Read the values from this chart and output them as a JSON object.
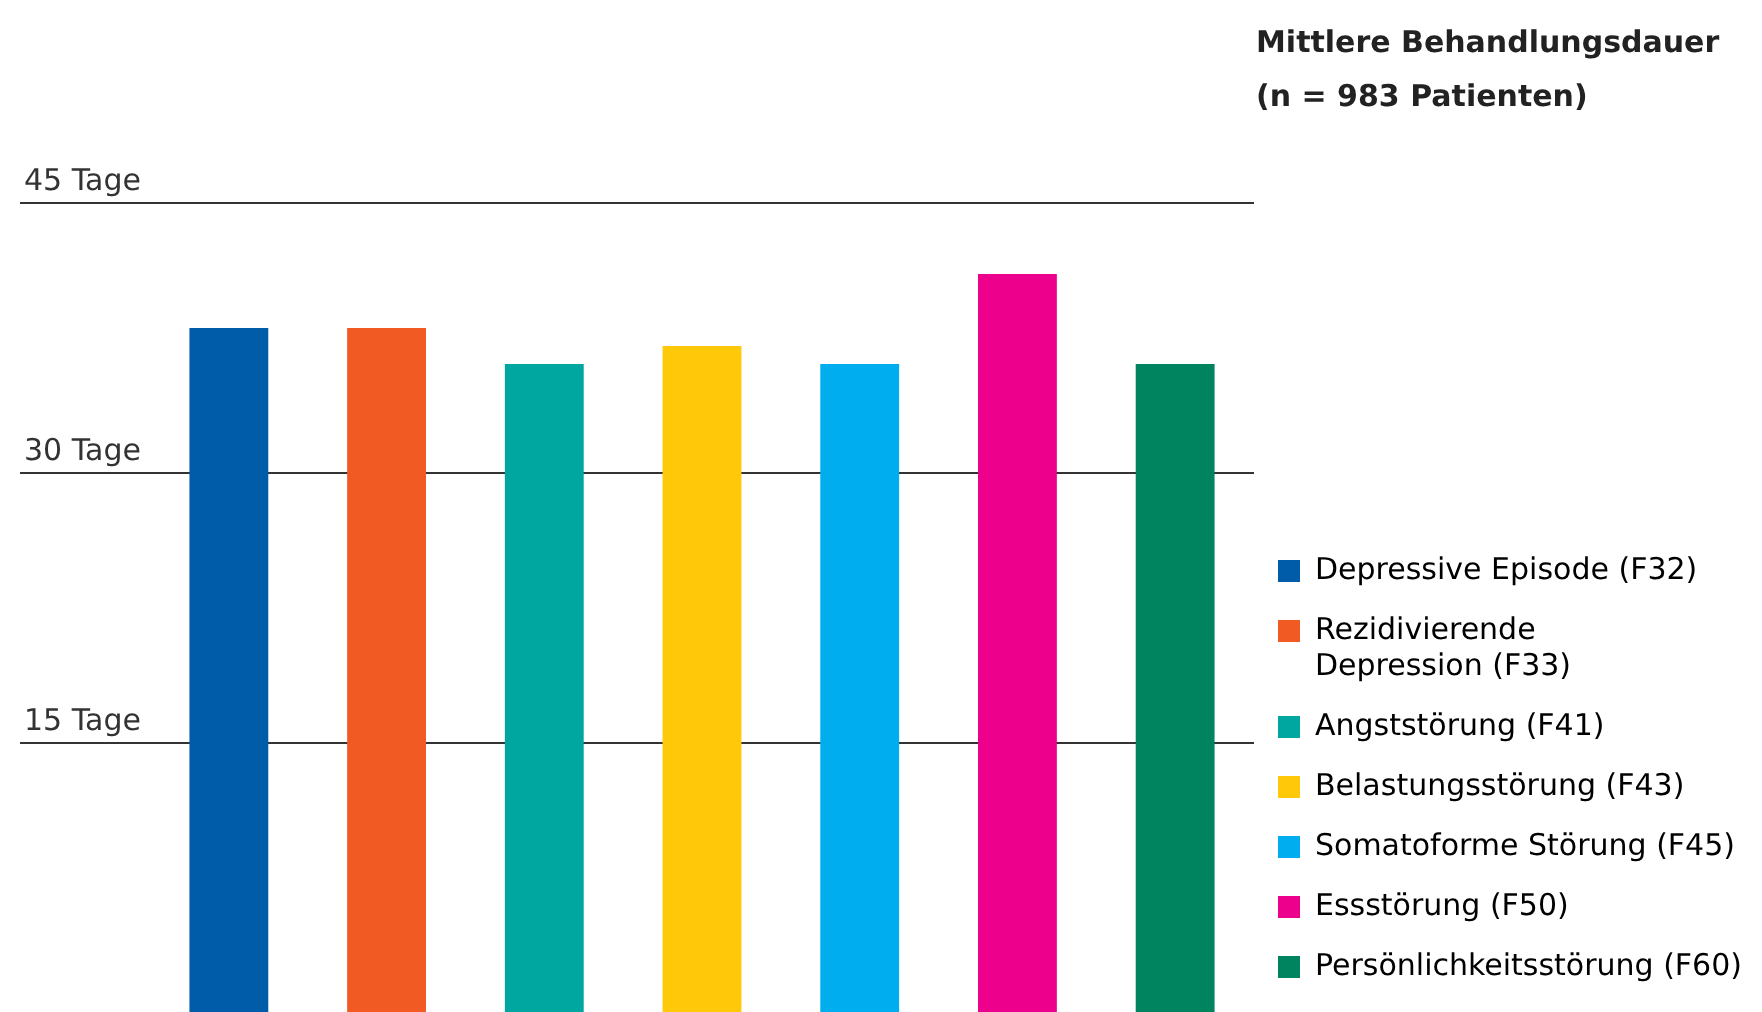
{
  "chart_data": {
    "type": "bar",
    "title": "Mittlere Behandlungsdauer\n(n = 983 Patienten)",
    "categories": [
      null,
      null,
      null,
      null,
      null,
      null,
      null
    ],
    "series": [
      {
        "name": "Depressive Episode (F32)",
        "color": "#005ca9",
        "values": [
          38,
          null,
          null,
          null,
          null,
          null,
          null
        ]
      },
      {
        "name": "Rezidivierende\nDepression (F33)",
        "color": "#f15a22",
        "values": [
          null,
          38,
          null,
          null,
          null,
          null,
          null
        ]
      },
      {
        "name": "Angststörung (F41)",
        "color": "#00a6a0",
        "values": [
          null,
          null,
          36,
          null,
          null,
          null,
          null
        ]
      },
      {
        "name": "Belastungsstörung (F43)",
        "color": "#ffc90a",
        "values": [
          null,
          null,
          null,
          37,
          null,
          null,
          null
        ]
      },
      {
        "name": "Somatoforme Störung (F45)",
        "color": "#00aeef",
        "values": [
          null,
          null,
          null,
          null,
          36,
          null,
          null
        ]
      },
      {
        "name": "Essstörung (F50)",
        "color": "#ec008c",
        "values": [
          null,
          null,
          null,
          null,
          null,
          41,
          null
        ]
      },
      {
        "name": "Persönlichkeitsstörung (F60)",
        "color": "#00845f",
        "values": [
          null,
          null,
          null,
          null,
          null,
          null,
          36
        ]
      }
    ],
    "ylim": [
      0,
      45
    ],
    "yticks": [
      {
        "value": 15,
        "label": "15 Tage"
      },
      {
        "value": 30,
        "label": "30 Tage"
      },
      {
        "value": 45,
        "label": "45 Tage"
      }
    ],
    "stacked": true,
    "grid": "y",
    "legend": "right",
    "tick_labels": "y"
  }
}
